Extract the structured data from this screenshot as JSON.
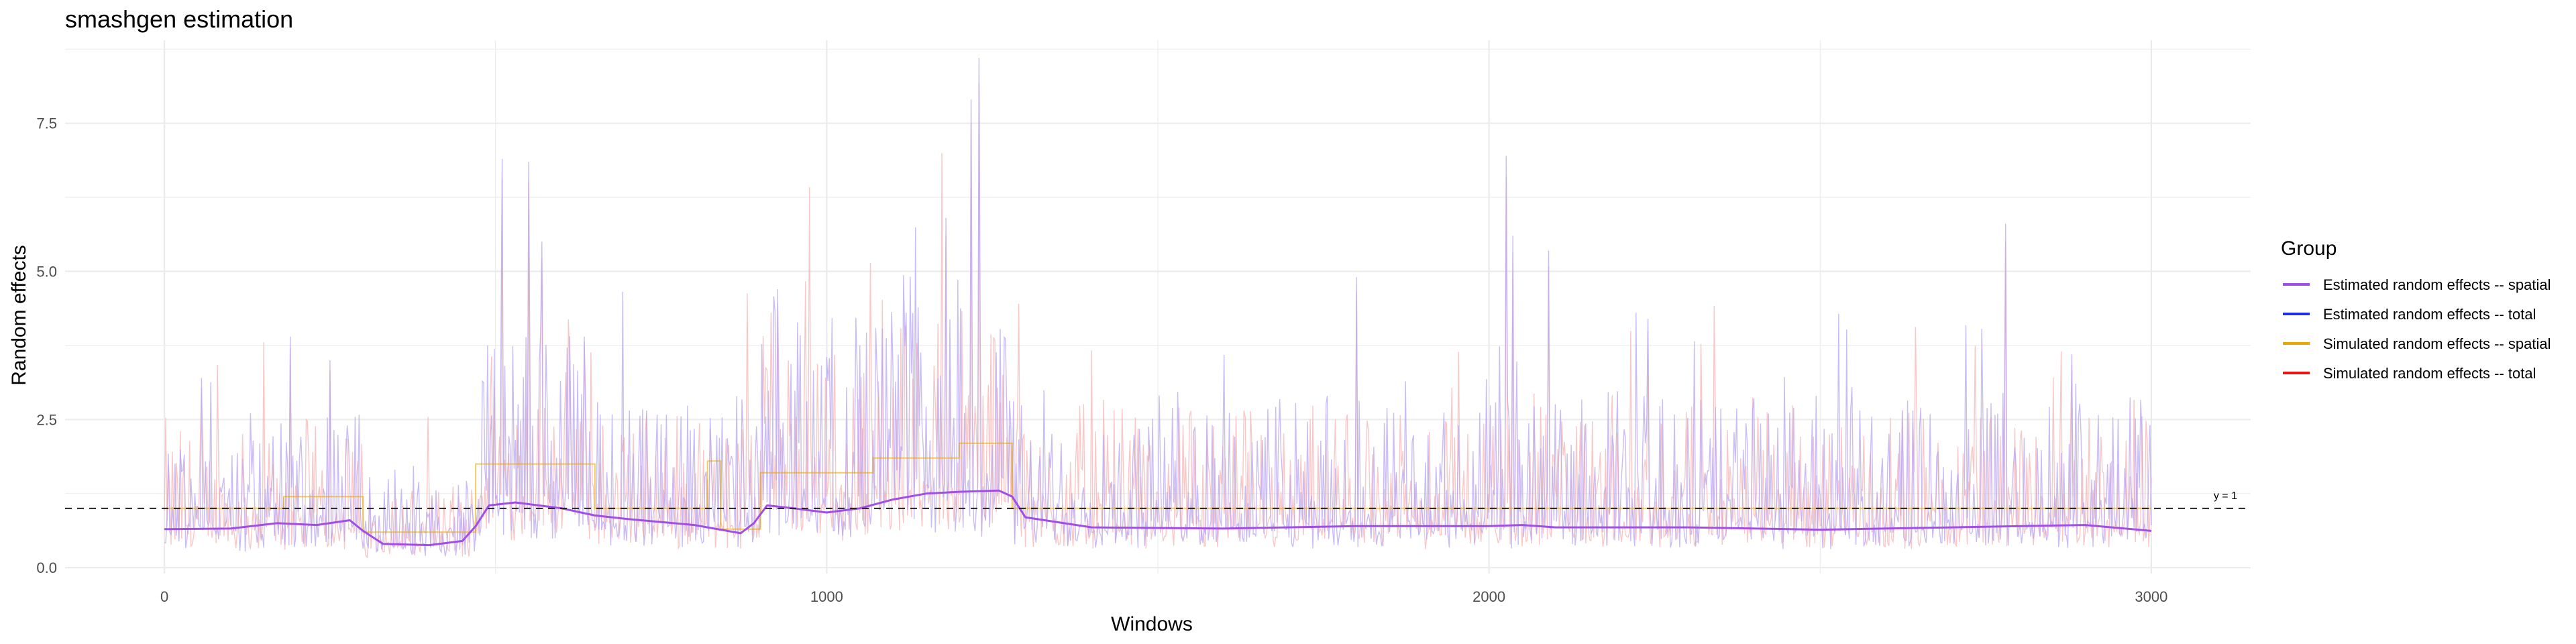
{
  "chart_data": {
    "type": "line",
    "title": "smashgen estimation",
    "xlabel": "Windows",
    "ylabel": "Random effects",
    "xlim": [
      -150,
      3150
    ],
    "ylim": [
      -0.1,
      8.9
    ],
    "x_ticks": [
      0,
      1000,
      2000,
      3000
    ],
    "y_ticks": [
      0.0,
      2.5,
      5.0,
      7.5
    ],
    "x_tick_labels": [
      "0",
      "1000",
      "2000",
      "3000"
    ],
    "y_tick_labels": [
      "0.0",
      "2.5",
      "5.0",
      "7.5"
    ],
    "grid": true,
    "legend": {
      "title": "Group",
      "position": "right",
      "entries": [
        {
          "label": "Estimated random effects -- spatial",
          "color": "#a04ee6"
        },
        {
          "label": "Estimated random effects -- total",
          "color": "#1f2fe6"
        },
        {
          "label": "Simulated random effects -- spatial",
          "color": "#e6a800"
        },
        {
          "label": "Simulated random effects -- total",
          "color": "#ee1111"
        }
      ]
    },
    "reference_line": {
      "y": 1,
      "label": "y = 1",
      "style": "dashed"
    },
    "series": [
      {
        "name": "Simulated random effects -- spatial",
        "color": "#e6a800",
        "style": "step",
        "segments": [
          {
            "x_start": 0,
            "x_end": 180,
            "y": 1.0
          },
          {
            "x_start": 180,
            "x_end": 300,
            "y": 1.2
          },
          {
            "x_start": 300,
            "x_end": 470,
            "y": 0.6
          },
          {
            "x_start": 470,
            "x_end": 650,
            "y": 1.75
          },
          {
            "x_start": 650,
            "x_end": 820,
            "y": 1.0
          },
          {
            "x_start": 820,
            "x_end": 840,
            "y": 1.8
          },
          {
            "x_start": 840,
            "x_end": 900,
            "y": 0.65
          },
          {
            "x_start": 900,
            "x_end": 1070,
            "y": 1.6
          },
          {
            "x_start": 1070,
            "x_end": 1200,
            "y": 1.85
          },
          {
            "x_start": 1200,
            "x_end": 1280,
            "y": 2.1
          },
          {
            "x_start": 1280,
            "x_end": 3000,
            "y": 1.0
          }
        ]
      },
      {
        "name": "Estimated random effects -- spatial",
        "color": "#a04ee6",
        "style": "smooth",
        "x": [
          0,
          100,
          170,
          230,
          280,
          300,
          330,
          400,
          450,
          470,
          490,
          530,
          600,
          650,
          700,
          800,
          870,
          890,
          910,
          950,
          1000,
          1050,
          1100,
          1150,
          1200,
          1260,
          1280,
          1300,
          1400,
          1600,
          1800,
          2000,
          2050,
          2100,
          2300,
          2500,
          2700,
          2900,
          3000
        ],
        "y": [
          0.65,
          0.66,
          0.75,
          0.72,
          0.8,
          0.62,
          0.4,
          0.38,
          0.45,
          0.7,
          1.05,
          1.1,
          1.0,
          0.88,
          0.82,
          0.72,
          0.58,
          0.75,
          1.05,
          1.0,
          0.93,
          1.0,
          1.15,
          1.25,
          1.28,
          1.3,
          1.2,
          0.85,
          0.68,
          0.66,
          0.7,
          0.7,
          0.72,
          0.68,
          0.68,
          0.64,
          0.68,
          0.72,
          0.62
        ]
      }
    ],
    "noisy_series": {
      "description_free": true,
      "estimated_total_color": "#b8a6f0",
      "simulated_total_color": "#f6b6b6",
      "peaks": [
        {
          "x": 55,
          "y": 3.2
        },
        {
          "x": 190,
          "y": 3.9
        },
        {
          "x": 250,
          "y": 3.5
        },
        {
          "x": 510,
          "y": 6.9
        },
        {
          "x": 550,
          "y": 6.85
        },
        {
          "x": 570,
          "y": 5.5
        },
        {
          "x": 925,
          "y": 4.7
        },
        {
          "x": 1120,
          "y": 4.3
        },
        {
          "x": 1180,
          "y": 5.9
        },
        {
          "x": 1218,
          "y": 7.9
        },
        {
          "x": 1230,
          "y": 8.6
        },
        {
          "x": 1800,
          "y": 4.9
        },
        {
          "x": 2025,
          "y": 6.95
        },
        {
          "x": 2035,
          "y": 5.6
        },
        {
          "x": 2090,
          "y": 5.35
        },
        {
          "x": 2240,
          "y": 4.2
        },
        {
          "x": 2780,
          "y": 5.8
        },
        {
          "x": 2880,
          "y": 3.6
        }
      ],
      "segment_levels": [
        {
          "x_start": 0,
          "x_end": 300,
          "mean": 0.9
        },
        {
          "x_start": 300,
          "x_end": 470,
          "mean": 0.55
        },
        {
          "x_start": 470,
          "x_end": 650,
          "mean": 1.5
        },
        {
          "x_start": 650,
          "x_end": 900,
          "mean": 1.0
        },
        {
          "x_start": 900,
          "x_end": 1070,
          "mean": 1.5
        },
        {
          "x_start": 1070,
          "x_end": 1280,
          "mean": 1.7
        },
        {
          "x_start": 1280,
          "x_end": 3000,
          "mean": 1.0
        }
      ]
    }
  }
}
